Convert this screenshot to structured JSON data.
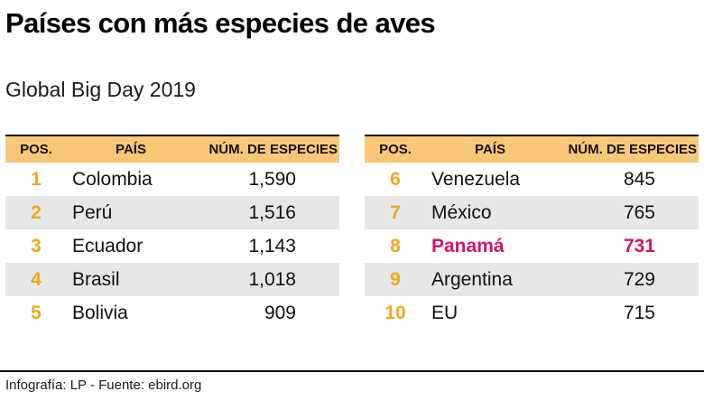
{
  "title": "Países con más especies de aves",
  "subtitle": "Global Big Day 2019",
  "columns": [
    "POS.",
    "PAÍS",
    "NÚM. DE ESPECIES"
  ],
  "tables": [
    {
      "rows": [
        {
          "pos": "1",
          "country": "Colombia",
          "value": "1,590"
        },
        {
          "pos": "2",
          "country": "Perú",
          "value": "1,516"
        },
        {
          "pos": "3",
          "country": "Ecuador",
          "value": "1,143"
        },
        {
          "pos": "4",
          "country": "Brasil",
          "value": "1,018"
        },
        {
          "pos": "5",
          "country": "Bolivia",
          "value": "909"
        }
      ]
    },
    {
      "rows": [
        {
          "pos": "6",
          "country": "Venezuela",
          "value": "845"
        },
        {
          "pos": "7",
          "country": "México",
          "value": "765"
        },
        {
          "pos": "8",
          "country": "Panamá",
          "value": "731",
          "highlight": true
        },
        {
          "pos": "9",
          "country": "Argentina",
          "value": "729"
        },
        {
          "pos": "10",
          "country": "EU",
          "value": "715"
        }
      ]
    }
  ],
  "footer": "Infografía: LP - Fuente: ebird.org",
  "colors": {
    "header_bg": "#F8C878",
    "position_accent": "#F2A71B",
    "highlight": "#D4126B",
    "alt_row": "#E7E7E7",
    "text": "#111111"
  },
  "chart_data": {
    "type": "table",
    "title": "Países con más especies de aves",
    "subtitle": "Global Big Day 2019",
    "columns": [
      "POS.",
      "PAÍS",
      "NÚM. DE ESPECIES"
    ],
    "rows": [
      [
        1,
        "Colombia",
        1590
      ],
      [
        2,
        "Perú",
        1516
      ],
      [
        3,
        "Ecuador",
        1143
      ],
      [
        4,
        "Brasil",
        1018
      ],
      [
        5,
        "Bolivia",
        909
      ],
      [
        6,
        "Venezuela",
        845
      ],
      [
        7,
        "México",
        765
      ],
      [
        8,
        "Panamá",
        731
      ],
      [
        9,
        "Argentina",
        729
      ],
      [
        10,
        "EU",
        715
      ]
    ],
    "highlighted": {
      "pos": 8,
      "country": "Panamá",
      "value": 731
    },
    "source": "Infografía: LP - Fuente: ebird.org"
  }
}
